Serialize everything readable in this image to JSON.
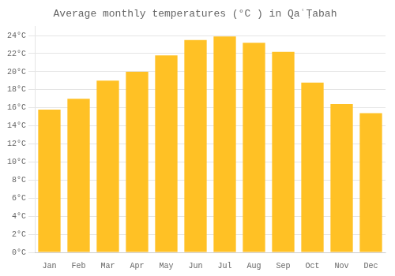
{
  "chart_data": {
    "type": "bar",
    "title": "Average monthly temperatures (°C ) in QaʿṬabah",
    "categories": [
      "Jan",
      "Feb",
      "Mar",
      "Apr",
      "May",
      "Jun",
      "Jul",
      "Aug",
      "Sep",
      "Oct",
      "Nov",
      "Dec"
    ],
    "values": [
      15.8,
      17.0,
      19.0,
      20.0,
      21.8,
      23.5,
      23.9,
      23.2,
      22.2,
      18.8,
      16.4,
      15.4
    ],
    "color": "#FFC125",
    "ylim": [
      0,
      25
    ],
    "yticks": [
      {
        "value": 0,
        "label": "0°C"
      },
      {
        "value": 2,
        "label": "2°C"
      },
      {
        "value": 4,
        "label": "4°C"
      },
      {
        "value": 6,
        "label": "6°C"
      },
      {
        "value": 8,
        "label": "8°C"
      },
      {
        "value": 10,
        "label": "10°C"
      },
      {
        "value": 12,
        "label": "12°C"
      },
      {
        "value": 14,
        "label": "14°C"
      },
      {
        "value": 16,
        "label": "16°C"
      },
      {
        "value": 18,
        "label": "18°C"
      },
      {
        "value": 20,
        "label": "20°C"
      },
      {
        "value": 22,
        "label": "22°C"
      },
      {
        "value": 24,
        "label": "24°C"
      }
    ],
    "grid": true
  }
}
